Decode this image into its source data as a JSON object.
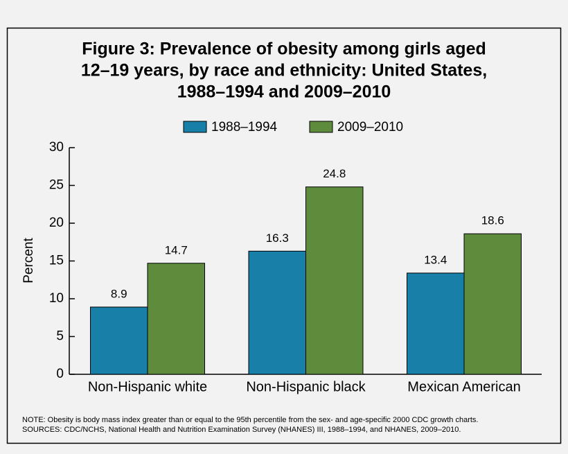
{
  "chart_data": {
    "type": "bar",
    "title": [
      "Figure 3: Prevalence of obesity among girls aged",
      "12–19 years, by race and ethnicity: United States,",
      "1988–1994 and 2009–2010"
    ],
    "y_label": "Percent",
    "categories": [
      "Non-Hispanic white",
      "Non-Hispanic black",
      "Mexican American"
    ],
    "series": [
      {
        "name": "1988–1994",
        "color": "#1880a8",
        "values": [
          8.9,
          16.3,
          13.4
        ]
      },
      {
        "name": "2009–2010",
        "color": "#5e8b3c",
        "values": [
          14.7,
          24.8,
          18.6
        ]
      }
    ],
    "ylim": [
      0,
      30
    ],
    "yticks": [
      0,
      5,
      10,
      15,
      20,
      25,
      30
    ],
    "notes": [
      "NOTE: Obesity is body mass index greater than or equal to the 95th percentile from the sex- and age-specific 2000 CDC growth charts.",
      "SOURCES: CDC/NCHS, National Health and Nutrition Examination Survey (NHANES) III, 1988–1994, and NHANES, 2009–2010."
    ]
  }
}
